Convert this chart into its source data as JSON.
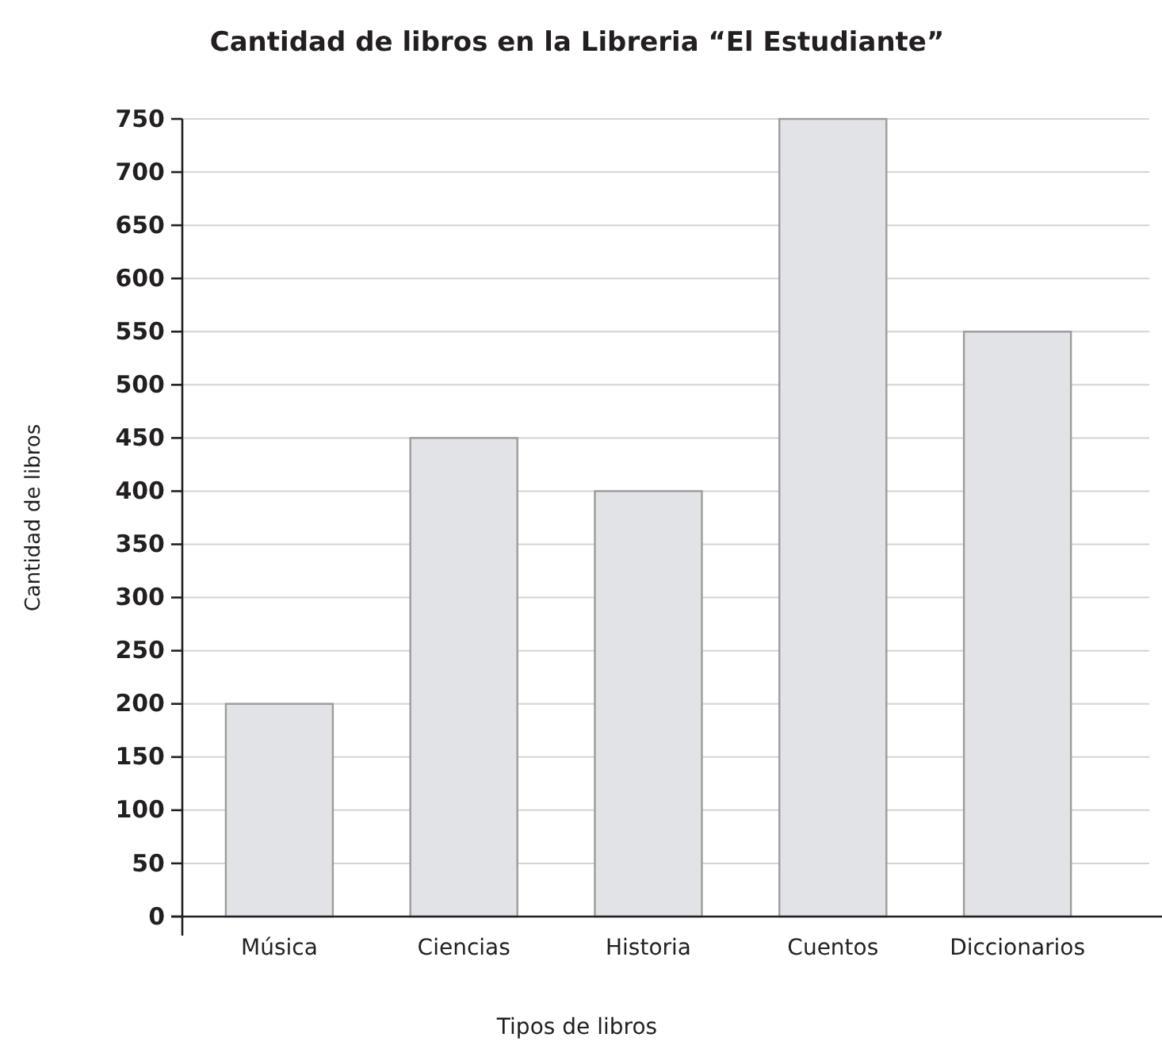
{
  "chart_data": {
    "type": "bar",
    "title": "Cantidad de libros en la Libreria “El Estudiante”",
    "xlabel": "Tipos de libros",
    "ylabel": "Cantidad de libros",
    "categories": [
      "Música",
      "Ciencias",
      "Historia",
      "Cuentos",
      "Diccionarios"
    ],
    "values": [
      200,
      450,
      400,
      750,
      550
    ],
    "color": "#e2e3e6",
    "ylim": [
      0,
      750
    ],
    "yticks": [
      0,
      50,
      100,
      150,
      200,
      250,
      300,
      350,
      400,
      450,
      500,
      550,
      600,
      650,
      700,
      750
    ],
    "grid": "y"
  }
}
